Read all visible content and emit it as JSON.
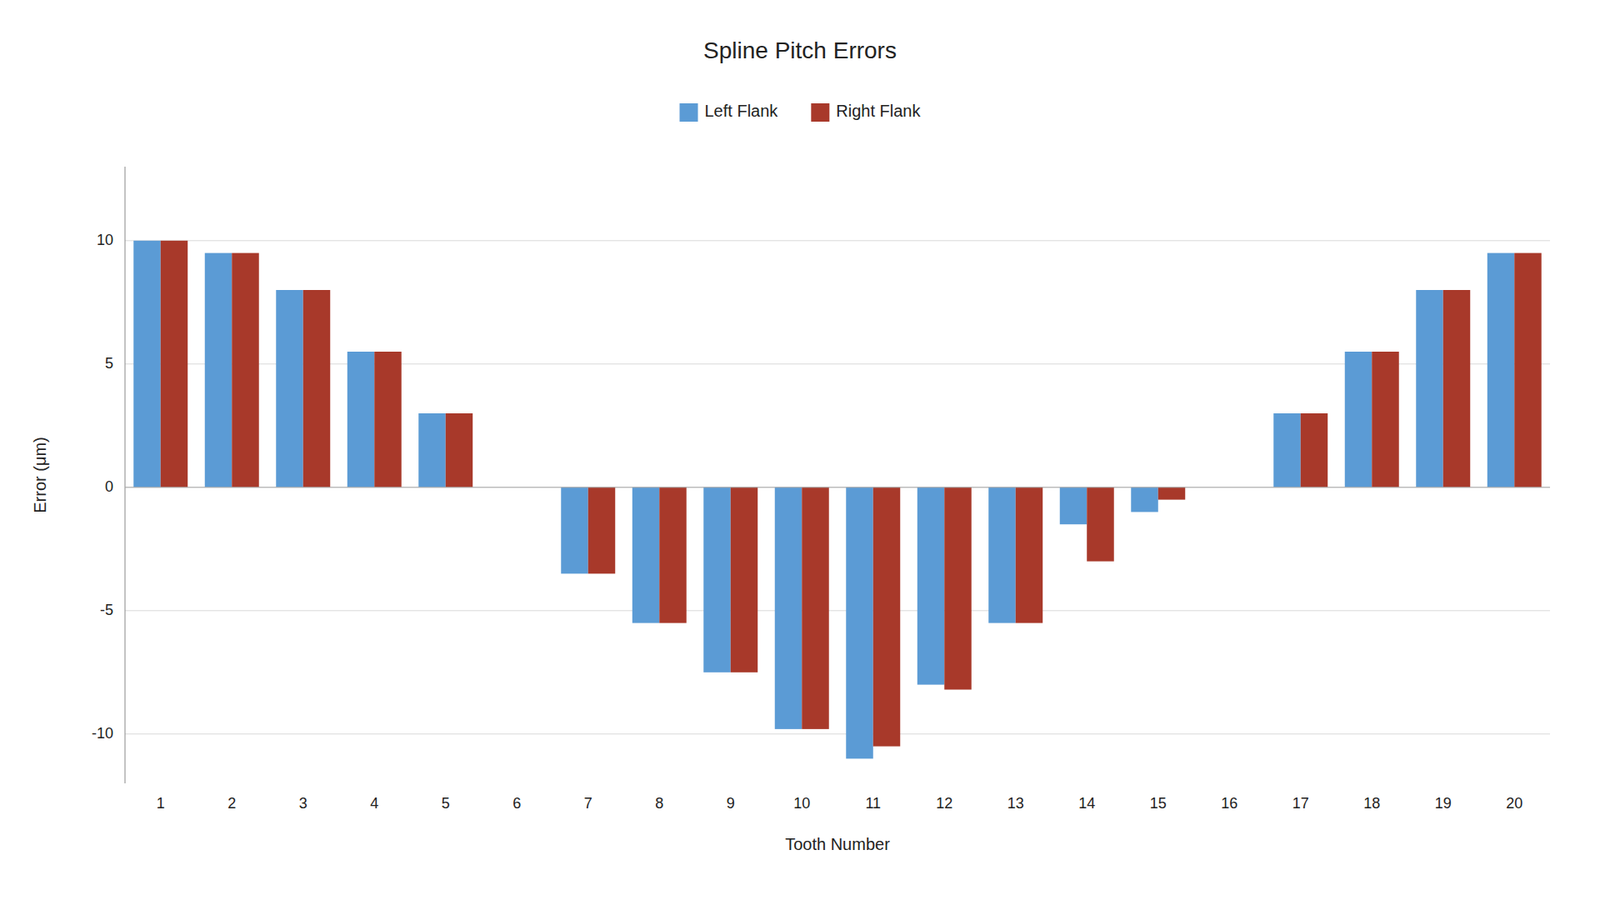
{
  "chart_data": {
    "type": "bar",
    "title": "Spline Pitch Errors",
    "xlabel": "Tooth Number",
    "ylabel": "Error (μm)",
    "categories": [
      "1",
      "2",
      "3",
      "4",
      "5",
      "6",
      "7",
      "8",
      "9",
      "10",
      "11",
      "12",
      "13",
      "14",
      "15",
      "16",
      "17",
      "18",
      "19",
      "20"
    ],
    "series": [
      {
        "name": "Left Flank",
        "color": "#5B9BD5",
        "values": [
          10.0,
          9.5,
          8.0,
          5.5,
          3.0,
          0.0,
          -3.5,
          -5.5,
          -7.5,
          -9.8,
          -11.0,
          -8.0,
          -5.5,
          -1.5,
          -1.0,
          0.0,
          3.0,
          5.5,
          8.0,
          9.5
        ]
      },
      {
        "name": "Right Flank",
        "color": "#A8392A",
        "values": [
          10.0,
          9.5,
          8.0,
          5.5,
          3.0,
          0.0,
          -3.5,
          -5.5,
          -7.5,
          -9.8,
          -10.5,
          -8.2,
          -5.5,
          -3.0,
          -0.5,
          0.0,
          3.0,
          5.5,
          8.0,
          9.5
        ]
      }
    ],
    "ylim": [
      -12,
      13
    ],
    "yticks": [
      -10,
      -5,
      0,
      5,
      10
    ],
    "grid": true,
    "legend": "top"
  }
}
